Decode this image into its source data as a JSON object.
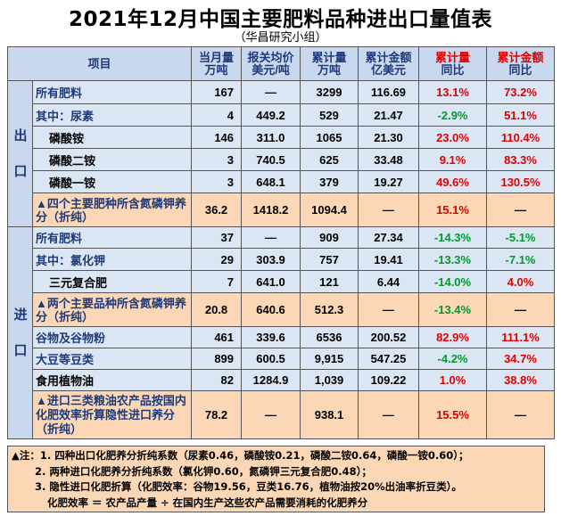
{
  "title": "2021年12月中国主要肥料品种进出口量值表",
  "subtitle": "（华昌研究小组）",
  "headers": {
    "item": "项目",
    "month_qty_1": "当月量",
    "month_qty_2": "万吨",
    "price_1": "报关均价",
    "price_2": "美元/吨",
    "cum_qty_1": "累计量",
    "cum_qty_2": "万吨",
    "cum_amt_1": "累计金额",
    "cum_amt_2": "亿美元",
    "cum_qty_yoy_1": "累计量",
    "cum_qty_yoy_2": "同比",
    "cum_amt_yoy_1": "累计金额",
    "cum_amt_yoy_2": "同比"
  },
  "sections": {
    "export": "出口",
    "import": "进口"
  },
  "export_rows": [
    {
      "name": "所有肥料",
      "month": "167",
      "price": "—",
      "cum": "3299",
      "amt": "116.69",
      "qyoy": "13.1%",
      "ayoy": "73.2%"
    },
    {
      "name": "其中：尿素",
      "month": "4",
      "price": "449.2",
      "cum": "529",
      "amt": "21.47",
      "qyoy": "-2.9%",
      "ayoy": "51.1%"
    },
    {
      "name": "磷酸铵",
      "month": "146",
      "price": "311.0",
      "cum": "1065",
      "amt": "21.30",
      "qyoy": "23.0%",
      "ayoy": "110.4%"
    },
    {
      "name": "磷酸二铵",
      "month": "3",
      "price": "740.5",
      "cum": "625",
      "amt": "33.48",
      "qyoy": "9.1%",
      "ayoy": "83.3%"
    },
    {
      "name": "磷酸一铵",
      "month": "3",
      "price": "648.1",
      "cum": "379",
      "amt": "19.27",
      "qyoy": "49.6%",
      "ayoy": "130.5%"
    },
    {
      "name": "▲四个主要肥种所含氮磷钾养分（折纯）",
      "month": "36.2",
      "price": "1418.2",
      "cum": "1094.4",
      "amt": "—",
      "qyoy": "15.1%",
      "ayoy": "—"
    }
  ],
  "import_rows": [
    {
      "name": "所有肥料",
      "month": "37",
      "price": "—",
      "cum": "909",
      "amt": "27.34",
      "qyoy": "-14.3%",
      "ayoy": "-5.1%"
    },
    {
      "name": "其中：氯化钾",
      "month": "29",
      "price": "303.9",
      "cum": "757",
      "amt": "19.41",
      "qyoy": "-13.3%",
      "ayoy": "-7.1%"
    },
    {
      "name": "三元复合肥",
      "month": "7",
      "price": "641.0",
      "cum": "121",
      "amt": "6.44",
      "qyoy": "-14.0%",
      "ayoy": "4.0%"
    },
    {
      "name": "▲两个主要品种所含氮磷钾养分（折纯）",
      "month": "20.8",
      "price": "640.6",
      "cum": "512.3",
      "amt": "—",
      "qyoy": "-13.4%",
      "ayoy": "—"
    },
    {
      "name": "谷物及谷物粉",
      "month": "461",
      "price": "339.6",
      "cum": "6536",
      "amt": "200.52",
      "qyoy": "82.9%",
      "ayoy": "111.1%"
    },
    {
      "name": "大豆等豆类",
      "month": "899",
      "price": "600.5",
      "cum": "9,915",
      "amt": "547.25",
      "qyoy": "-4.2%",
      "ayoy": "34.7%"
    },
    {
      "name": "食用植物油",
      "month": "82",
      "price": "1284.9",
      "cum": "1,039",
      "amt": "109.22",
      "qyoy": "1.0%",
      "ayoy": "38.8%"
    },
    {
      "name": "▲进口三类粮油农产品按国内化肥效率折算隐性进口养分（折纯）",
      "month": "78.2",
      "price": "—",
      "cum": "938.1",
      "amt": "—",
      "qyoy": "15.5%",
      "ayoy": "—"
    }
  ],
  "notes": [
    "▲注：1. 四种出口化肥养分折纯系数（尿素0.46，磷酸铵0.21，磷酸二铵0.64，磷酸一铵0.60）；",
    "2. 两种进口化肥养分折纯系数（氯化钾0.60，氮磷钾三元复合肥0.48）；",
    "3. 隐性进口化肥折算（化肥效率：谷物19.56，豆类16.76，植物油按20%出油率折豆类）。",
    "化肥效率 ＝ 农产品产量 ÷ 在国内生产这些农产品需要消耗的化肥养分"
  ],
  "colors": {
    "header_bg": "#c9d8ee",
    "row_blue": "#dbe6f4",
    "row_orange": "#fbd7b6",
    "positive": "#e00000",
    "negative": "#009a2e"
  }
}
